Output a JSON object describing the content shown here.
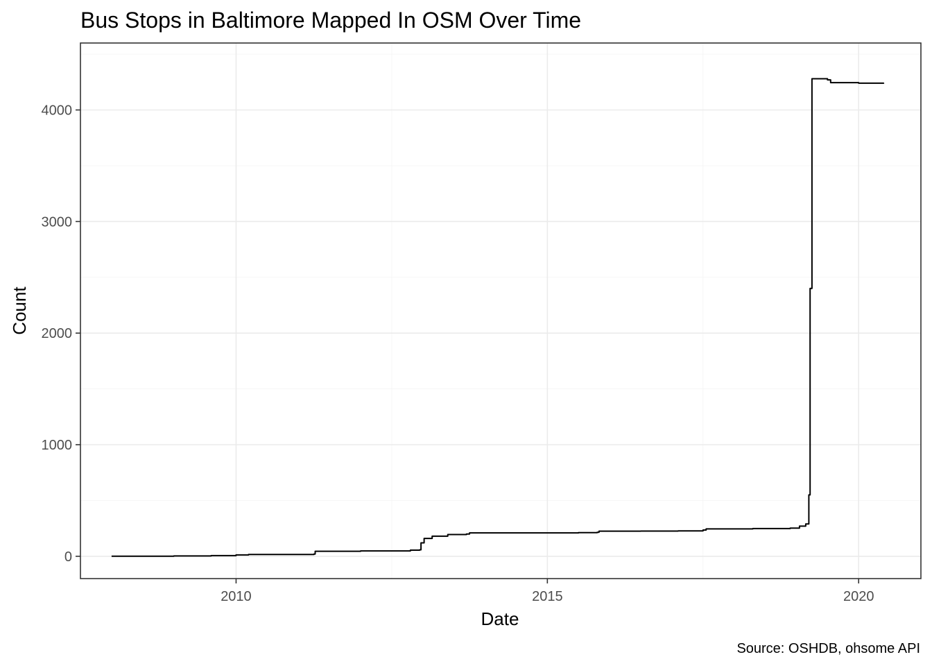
{
  "chart_data": {
    "type": "line",
    "title": "Bus Stops in Baltimore Mapped In OSM Over Time",
    "xlabel": "Date",
    "ylabel": "Count",
    "caption": "Source: OSHDB, ohsome API",
    "xlim": [
      2007.5,
      2021.0
    ],
    "ylim": [
      -200,
      4600
    ],
    "grid": true,
    "x_ticks": [
      {
        "value": 2010,
        "label": "2010"
      },
      {
        "value": 2015,
        "label": "2015"
      },
      {
        "value": 2020,
        "label": "2020"
      }
    ],
    "y_ticks": [
      {
        "value": 0,
        "label": "0"
      },
      {
        "value": 1000,
        "label": "1000"
      },
      {
        "value": 2000,
        "label": "2000"
      },
      {
        "value": 3000,
        "label": "3000"
      },
      {
        "value": 4000,
        "label": "4000"
      }
    ],
    "series": [
      {
        "points": [
          [
            2008.0,
            0
          ],
          [
            2009.0,
            3
          ],
          [
            2009.6,
            6
          ],
          [
            2010.0,
            12
          ],
          [
            2010.2,
            16
          ],
          [
            2011.25,
            20
          ],
          [
            2011.27,
            45
          ],
          [
            2012.0,
            48
          ],
          [
            2012.8,
            55
          ],
          [
            2012.95,
            58
          ],
          [
            2012.97,
            120
          ],
          [
            2013.02,
            160
          ],
          [
            2013.15,
            180
          ],
          [
            2013.4,
            195
          ],
          [
            2013.7,
            200
          ],
          [
            2013.75,
            210
          ],
          [
            2014.5,
            210
          ],
          [
            2015.5,
            212
          ],
          [
            2015.8,
            215
          ],
          [
            2015.83,
            225
          ],
          [
            2016.5,
            226
          ],
          [
            2017.1,
            228
          ],
          [
            2017.5,
            235
          ],
          [
            2017.55,
            245
          ],
          [
            2018.3,
            248
          ],
          [
            2018.9,
            252
          ],
          [
            2019.05,
            270
          ],
          [
            2019.15,
            290
          ],
          [
            2019.2,
            550
          ],
          [
            2019.22,
            2400
          ],
          [
            2019.25,
            4280
          ],
          [
            2019.5,
            4270
          ],
          [
            2019.55,
            4245
          ],
          [
            2020.0,
            4240
          ],
          [
            2020.4,
            4235
          ]
        ]
      }
    ]
  }
}
